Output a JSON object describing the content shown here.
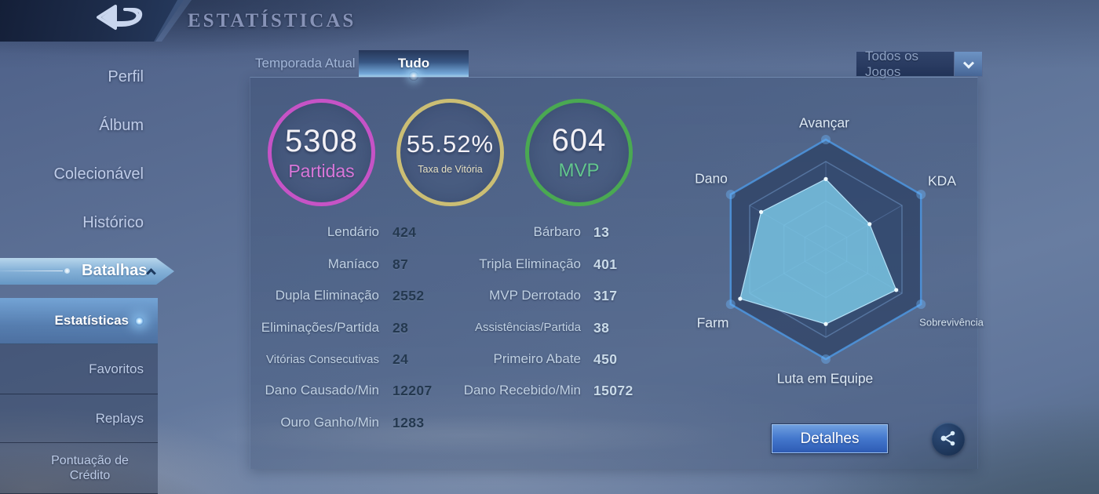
{
  "header": {
    "title": "ESTATÍSTICAS",
    "back_icon": "back-arrow-icon"
  },
  "sidebar": {
    "items": [
      {
        "label": "Perfil"
      },
      {
        "label": "Álbum"
      },
      {
        "label": "Colecionável"
      },
      {
        "label": "Histórico"
      }
    ],
    "battles": {
      "label": "Batalhas",
      "expanded": true
    },
    "submenu": [
      {
        "label": "Estatísticas",
        "active": true
      },
      {
        "label": "Favoritos",
        "active": false
      },
      {
        "label": "Replays",
        "active": false
      },
      {
        "label": "Pontuação de Crédito",
        "active": false
      }
    ]
  },
  "tabs": [
    {
      "label": "Temporada Atual",
      "active": false
    },
    {
      "label": "Tudo",
      "active": true
    }
  ],
  "filter": {
    "value": "Todos os Jogos",
    "icon": "chevron-down-icon"
  },
  "summary": [
    {
      "value": "5308",
      "label": "Partidas",
      "ring_color": "#c653c6",
      "label_color": "#d977d9"
    },
    {
      "value": "55.52%",
      "label": "Taxa de Vitória",
      "ring_color": "#cbbe74",
      "label_color": "#e8e2c4"
    },
    {
      "value": "604",
      "label": "MVP",
      "ring_color": "#4aa952",
      "label_color": "#63c78e"
    }
  ],
  "stats": {
    "left": [
      {
        "label": "Lendário",
        "value": "424"
      },
      {
        "label": "Maníaco",
        "value": "87"
      },
      {
        "label": "Dupla Eliminação",
        "value": "2552"
      },
      {
        "label": "Eliminações/Partida",
        "value": "28"
      },
      {
        "label": "Vitórias Consecutivas",
        "value": "24"
      },
      {
        "label": "Dano Causado/Min",
        "value": "12207"
      },
      {
        "label": "Ouro Ganho/Min",
        "value": "1283"
      }
    ],
    "right": [
      {
        "label": "Bárbaro",
        "value": "13"
      },
      {
        "label": "Tripla Eliminação",
        "value": "401"
      },
      {
        "label": "MVP Derrotado",
        "value": "317"
      },
      {
        "label": "Assistências/Partida",
        "value": "38"
      },
      {
        "label": "Primeiro Abate",
        "value": "450"
      },
      {
        "label": "Dano Recebido/Min",
        "value": "15072"
      }
    ]
  },
  "chart_data": {
    "type": "radar",
    "axes": [
      "Avançar",
      "KDA",
      "Sobrevivência",
      "Luta em Equipe",
      "Farm",
      "Dano"
    ],
    "values": [
      0.64,
      0.46,
      0.74,
      0.68,
      0.9,
      0.68
    ],
    "max": 1,
    "grid_levels": [
      1,
      0.8,
      0.44,
      0.22
    ],
    "fill_color": "#7dc9e8",
    "outline_color": "#bfeaff",
    "grid_color": "#7292bd",
    "legend": "none",
    "note": "hexagonal radar, values normalized to outer hexagon = 1"
  },
  "actions": {
    "details_label": "Detalhes",
    "share_icon": "share-icon"
  }
}
